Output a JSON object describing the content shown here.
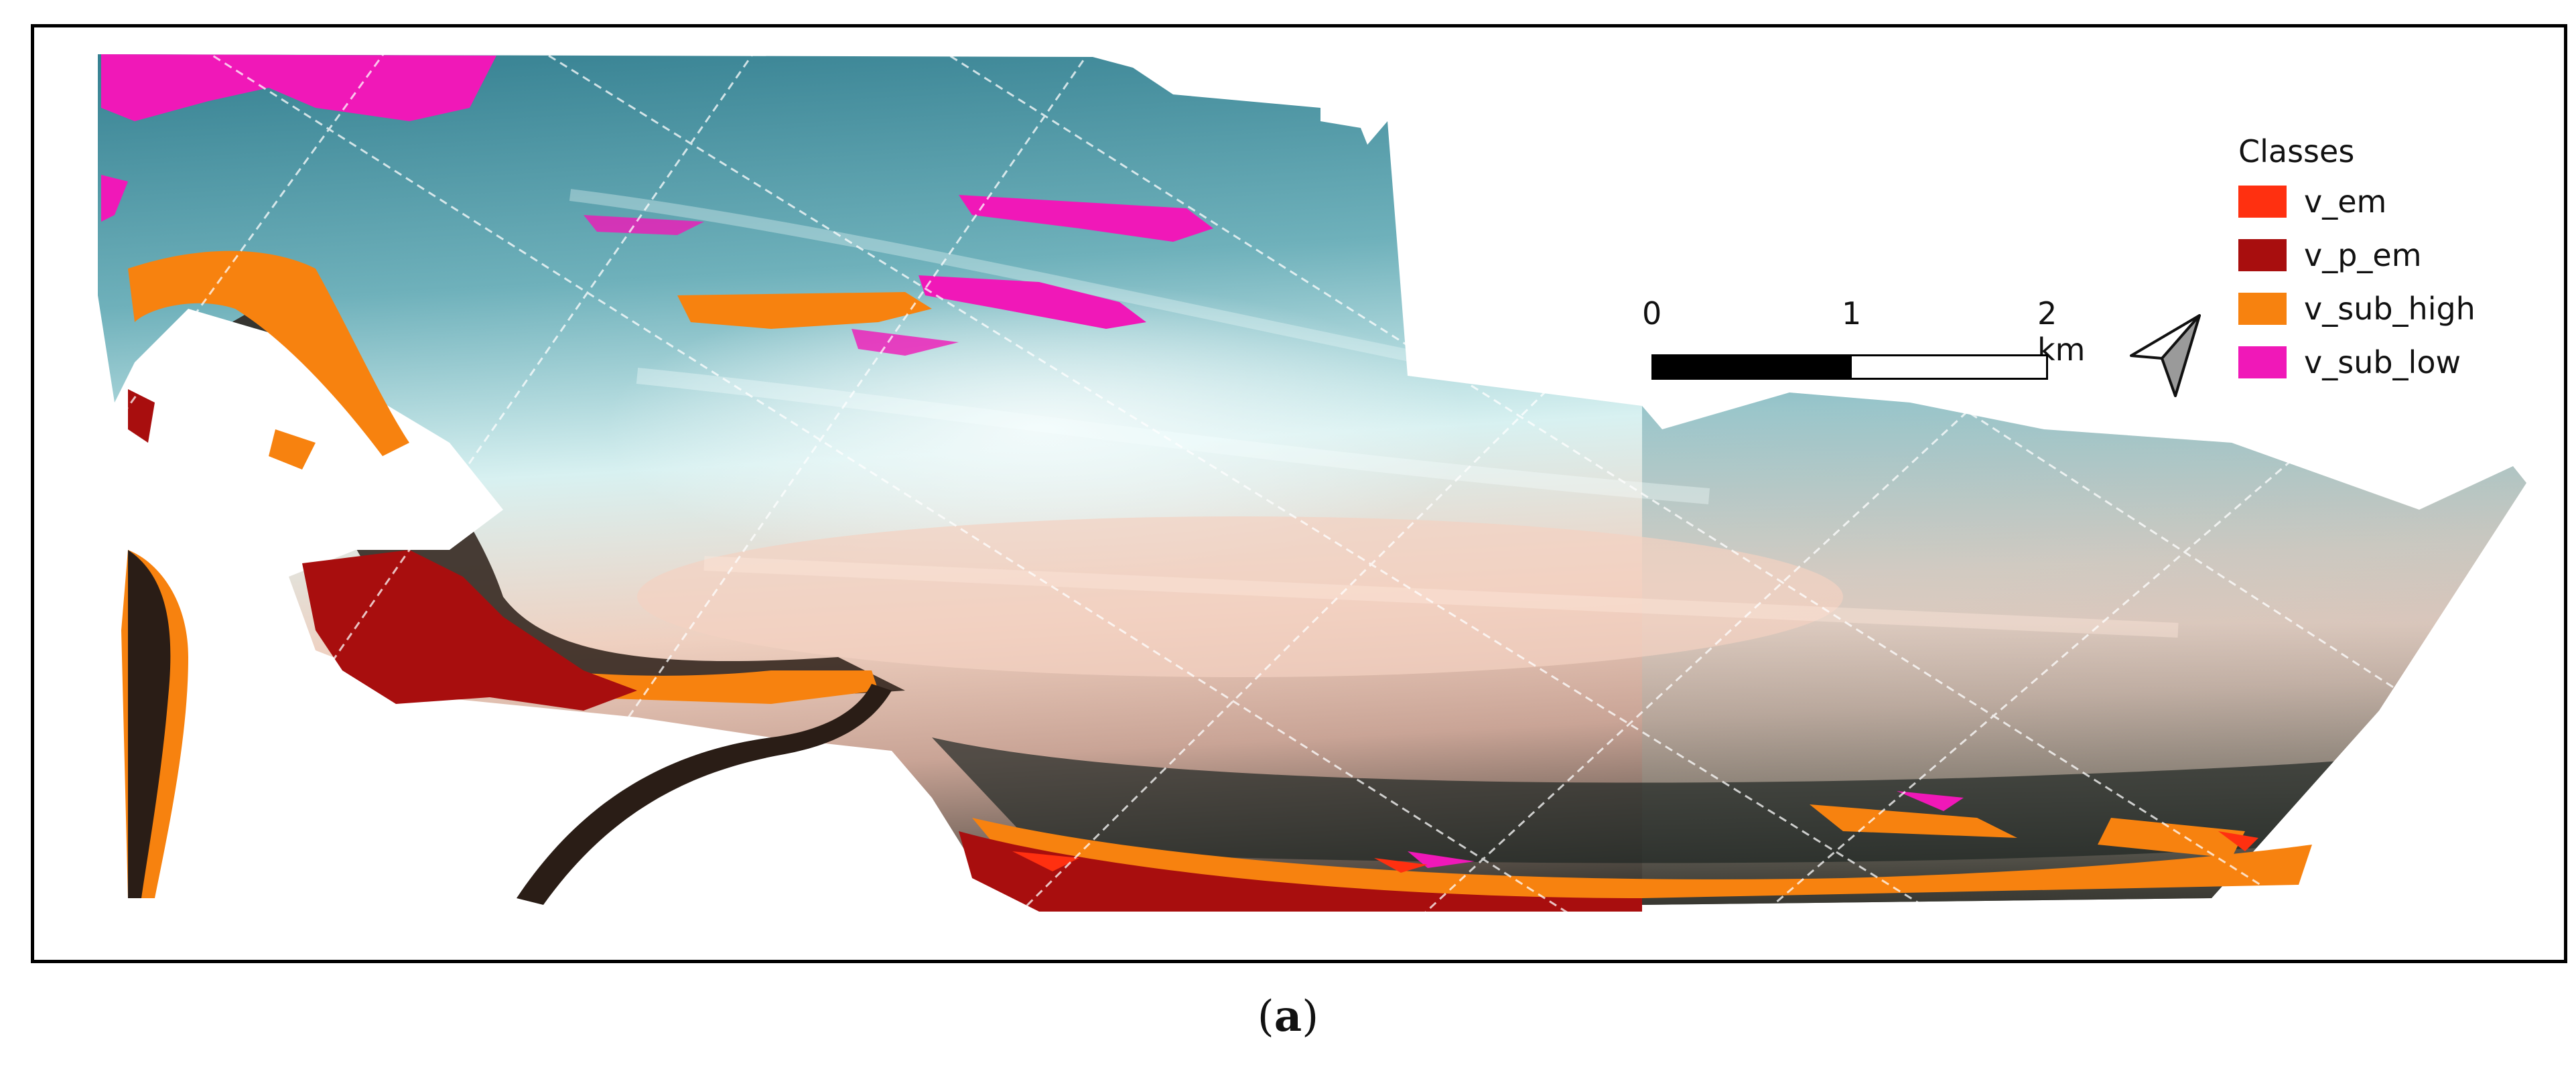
{
  "legend": {
    "title": "Classes",
    "items": [
      {
        "label": "v_em",
        "color": "#ff3010"
      },
      {
        "label": "v_p_em",
        "color": "#a80e0e"
      },
      {
        "label": "v_sub_high",
        "color": "#f7820f"
      },
      {
        "label": "v_sub_low",
        "color": "#f018b8"
      }
    ]
  },
  "scale_bar": {
    "ticks": [
      "0",
      "1",
      "2 km"
    ]
  },
  "north_arrow": {
    "icon": "north-arrow-icon"
  },
  "caption": {
    "open": "(",
    "letter": "a",
    "close": ")"
  },
  "colors": {
    "water_deep": "#3d8a98",
    "water_light": "#dff4f4",
    "sand_pink": "#f0cbb8",
    "mud_dark": "#2a1d16",
    "frame": "#000000"
  }
}
